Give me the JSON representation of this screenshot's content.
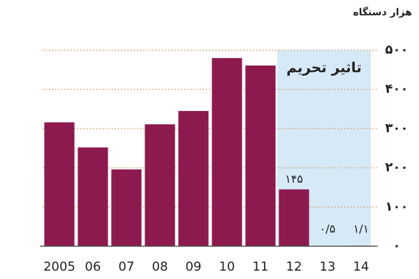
{
  "chart_data": {
    "type": "bar",
    "y_axis_label": "هزار دستگاه",
    "annotation": {
      "text": "تاثیر تحریم",
      "from": "12",
      "to": "14"
    },
    "categories": [
      "2005",
      "06",
      "07",
      "08",
      "09",
      "10",
      "11",
      "12",
      "13",
      "14"
    ],
    "values": [
      316,
      252,
      196,
      311,
      345,
      480,
      461,
      145,
      0.5,
      1.1
    ],
    "value_labels": [
      null,
      null,
      null,
      null,
      null,
      null,
      null,
      "۱۴۵",
      "۰/۵",
      "۱/۱"
    ],
    "color": "#8c1a4e",
    "ylim": [
      0,
      500
    ],
    "yticks": [
      {
        "value": 0,
        "label": "۰"
      },
      {
        "value": 100,
        "label": "۱۰۰"
      },
      {
        "value": 200,
        "label": "۲۰۰"
      },
      {
        "value": 300,
        "label": "۳۰۰"
      },
      {
        "value": 400,
        "label": "۴۰۰"
      },
      {
        "value": 500,
        "label": "۵۰۰"
      }
    ],
    "grid": true
  }
}
